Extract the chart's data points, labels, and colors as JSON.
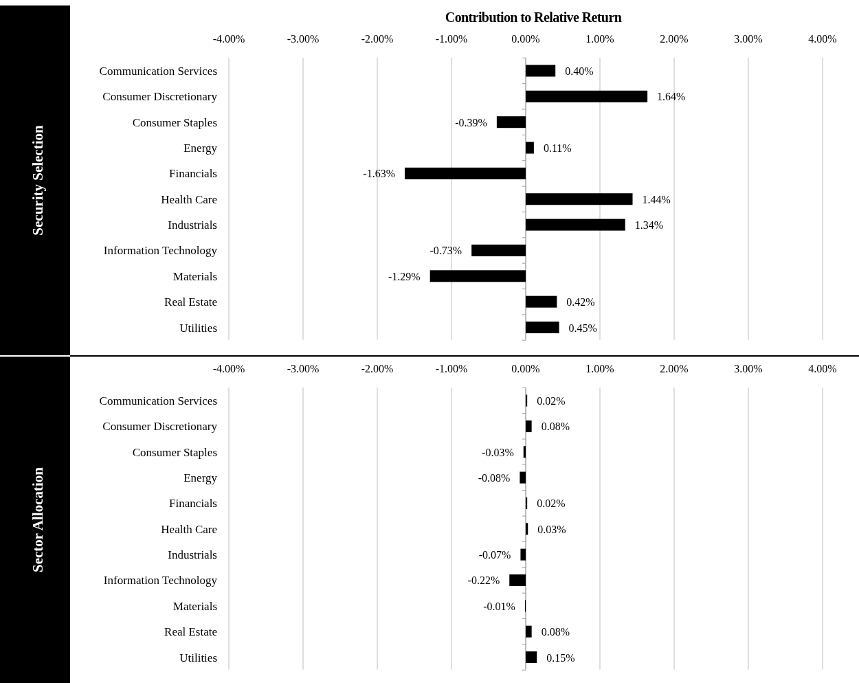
{
  "chart_data": [
    {
      "type": "bar",
      "orientation": "horizontal",
      "title": "Contribution to Relative Return",
      "ylabel": "Security Selection",
      "categories": [
        "Communication Services",
        "Consumer Discretionary",
        "Consumer Staples",
        "Energy",
        "Financials",
        "Health Care",
        "Industrials",
        "Information Technology",
        "Materials",
        "Real Estate",
        "Utilities"
      ],
      "values": [
        0.4,
        1.64,
        -0.39,
        0.11,
        -1.63,
        1.44,
        1.34,
        -0.73,
        -1.29,
        0.42,
        0.45
      ],
      "value_labels": [
        "0.40%",
        "1.64%",
        "-0.39%",
        "0.11%",
        "-1.63%",
        "1.44%",
        "1.34%",
        "-0.73%",
        "-1.29%",
        "0.42%",
        "0.45%"
      ],
      "color": "#000000",
      "xlim": [
        -4,
        4
      ],
      "xticks": [
        {
          "value": -4,
          "label": "-4.00%"
        },
        {
          "value": -3,
          "label": "-3.00%"
        },
        {
          "value": -2,
          "label": "-2.00%"
        },
        {
          "value": -1,
          "label": "-1.00%"
        },
        {
          "value": 0,
          "label": "0.00%"
        },
        {
          "value": 1,
          "label": "1.00%"
        },
        {
          "value": 2,
          "label": "2.00%"
        },
        {
          "value": 3,
          "label": "3.00%"
        },
        {
          "value": 4,
          "label": "4.00%"
        }
      ],
      "grid": "x"
    },
    {
      "type": "bar",
      "orientation": "horizontal",
      "ylabel": "Sector Allocation",
      "categories": [
        "Communication Services",
        "Consumer Discretionary",
        "Consumer Staples",
        "Energy",
        "Financials",
        "Health Care",
        "Industrials",
        "Information Technology",
        "Materials",
        "Real Estate",
        "Utilities"
      ],
      "values": [
        0.02,
        0.08,
        -0.03,
        -0.08,
        0.02,
        0.03,
        -0.07,
        -0.22,
        -0.01,
        0.08,
        0.15
      ],
      "value_labels": [
        "0.02%",
        "0.08%",
        "-0.03%",
        "-0.08%",
        "0.02%",
        "0.03%",
        "-0.07%",
        "-0.22%",
        "-0.01%",
        "0.08%",
        "0.15%"
      ],
      "color": "#000000",
      "xlim": [
        -4,
        4
      ],
      "xticks": [
        {
          "value": -4,
          "label": "-4.00%"
        },
        {
          "value": -3,
          "label": "-3.00%"
        },
        {
          "value": -2,
          "label": "-2.00%"
        },
        {
          "value": -1,
          "label": "-1.00%"
        },
        {
          "value": 0,
          "label": "0.00%"
        },
        {
          "value": 1,
          "label": "1.00%"
        },
        {
          "value": 2,
          "label": "2.00%"
        },
        {
          "value": 3,
          "label": "3.00%"
        },
        {
          "value": 4,
          "label": "4.00%"
        }
      ],
      "grid": "x"
    }
  ]
}
